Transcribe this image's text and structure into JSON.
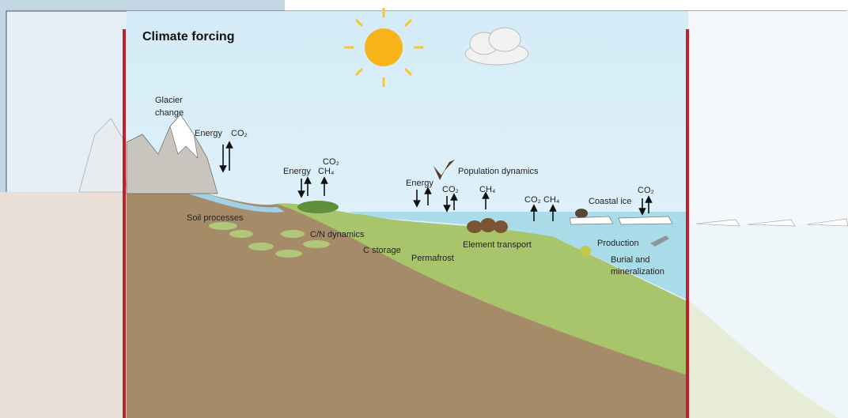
{
  "title": "Climate forcing",
  "labels": {
    "glacier": [
      "Glacier",
      "change"
    ],
    "energy_1": "Energy",
    "co2_1": "CO₂",
    "energy_2": "Energy",
    "co2_2": "CO₂",
    "ch4_2": "CH₄",
    "energy_3": "Energy",
    "co2_3": "CO₂",
    "ch4_3": "CH₄",
    "co2_4": "CO₂",
    "ch4_4": "CH₄",
    "population": "Population dynamics",
    "coastal_ice": "Coastal ice",
    "co2_5": "CO₂",
    "soil": "Soil processes",
    "cn": "C/N dynamics",
    "c_storage": "C storage",
    "permafrost": "Permafrost",
    "element": "Element transport",
    "production": "Production",
    "burial": [
      "Burial and",
      "mineralization"
    ]
  }
}
